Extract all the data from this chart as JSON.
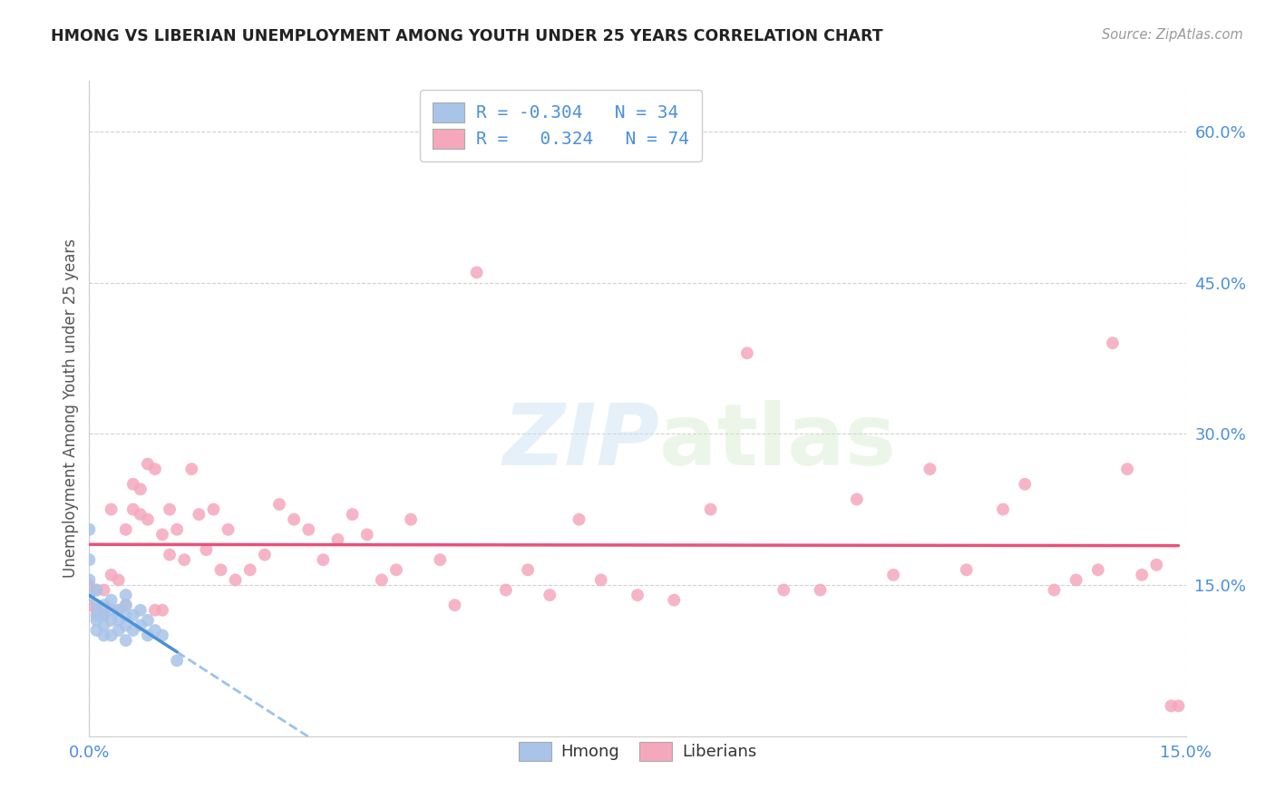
{
  "title": "HMONG VS LIBERIAN UNEMPLOYMENT AMONG YOUTH UNDER 25 YEARS CORRELATION CHART",
  "source": "Source: ZipAtlas.com",
  "ylabel": "Unemployment Among Youth under 25 years",
  "xlim": [
    0.0,
    0.15
  ],
  "ylim": [
    0.0,
    0.65
  ],
  "ytick_labels": [
    "15.0%",
    "30.0%",
    "45.0%",
    "60.0%"
  ],
  "ytick_positions": [
    0.15,
    0.3,
    0.45,
    0.6
  ],
  "xtick_labels": [
    "0.0%",
    "15.0%"
  ],
  "xtick_positions": [
    0.0,
    0.15
  ],
  "hmong_color": "#a8c4e8",
  "liberian_color": "#f5a8bc",
  "hmong_line_color": "#4a90d9",
  "liberian_line_color": "#e8527a",
  "watermark_zip": "ZIP",
  "watermark_atlas": "atlas",
  "background_color": "#ffffff",
  "grid_color": "#cccccc",
  "legend_R_color": "#4a90d9",
  "legend_N_color": "#4a90d9",
  "hmong_x": [
    0.0,
    0.0,
    0.0,
    0.0,
    0.001,
    0.001,
    0.001,
    0.001,
    0.001,
    0.002,
    0.002,
    0.002,
    0.002,
    0.003,
    0.003,
    0.003,
    0.003,
    0.004,
    0.004,
    0.004,
    0.005,
    0.005,
    0.005,
    0.005,
    0.005,
    0.006,
    0.006,
    0.007,
    0.007,
    0.008,
    0.008,
    0.009,
    0.01,
    0.012
  ],
  "hmong_y": [
    0.205,
    0.175,
    0.155,
    0.14,
    0.145,
    0.13,
    0.12,
    0.115,
    0.105,
    0.13,
    0.12,
    0.11,
    0.1,
    0.135,
    0.125,
    0.115,
    0.1,
    0.125,
    0.115,
    0.105,
    0.14,
    0.13,
    0.12,
    0.11,
    0.095,
    0.12,
    0.105,
    0.125,
    0.11,
    0.115,
    0.1,
    0.105,
    0.1,
    0.075
  ],
  "liberian_x": [
    0.0,
    0.0,
    0.001,
    0.001,
    0.002,
    0.002,
    0.003,
    0.003,
    0.004,
    0.004,
    0.005,
    0.005,
    0.006,
    0.006,
    0.007,
    0.007,
    0.008,
    0.008,
    0.009,
    0.009,
    0.01,
    0.01,
    0.011,
    0.011,
    0.012,
    0.013,
    0.014,
    0.015,
    0.016,
    0.017,
    0.018,
    0.019,
    0.02,
    0.022,
    0.024,
    0.026,
    0.028,
    0.03,
    0.032,
    0.034,
    0.036,
    0.038,
    0.04,
    0.042,
    0.044,
    0.048,
    0.05,
    0.053,
    0.057,
    0.06,
    0.063,
    0.067,
    0.07,
    0.075,
    0.08,
    0.085,
    0.09,
    0.095,
    0.1,
    0.105,
    0.11,
    0.115,
    0.12,
    0.125,
    0.128,
    0.132,
    0.135,
    0.138,
    0.14,
    0.142,
    0.144,
    0.146,
    0.148,
    0.149
  ],
  "liberian_y": [
    0.15,
    0.13,
    0.145,
    0.125,
    0.145,
    0.12,
    0.225,
    0.16,
    0.155,
    0.125,
    0.205,
    0.13,
    0.25,
    0.225,
    0.245,
    0.22,
    0.27,
    0.215,
    0.265,
    0.125,
    0.2,
    0.125,
    0.225,
    0.18,
    0.205,
    0.175,
    0.265,
    0.22,
    0.185,
    0.225,
    0.165,
    0.205,
    0.155,
    0.165,
    0.18,
    0.23,
    0.215,
    0.205,
    0.175,
    0.195,
    0.22,
    0.2,
    0.155,
    0.165,
    0.215,
    0.175,
    0.13,
    0.46,
    0.145,
    0.165,
    0.14,
    0.215,
    0.155,
    0.14,
    0.135,
    0.225,
    0.38,
    0.145,
    0.145,
    0.235,
    0.16,
    0.265,
    0.165,
    0.225,
    0.25,
    0.145,
    0.155,
    0.165,
    0.39,
    0.265,
    0.16,
    0.17,
    0.03,
    0.03
  ]
}
